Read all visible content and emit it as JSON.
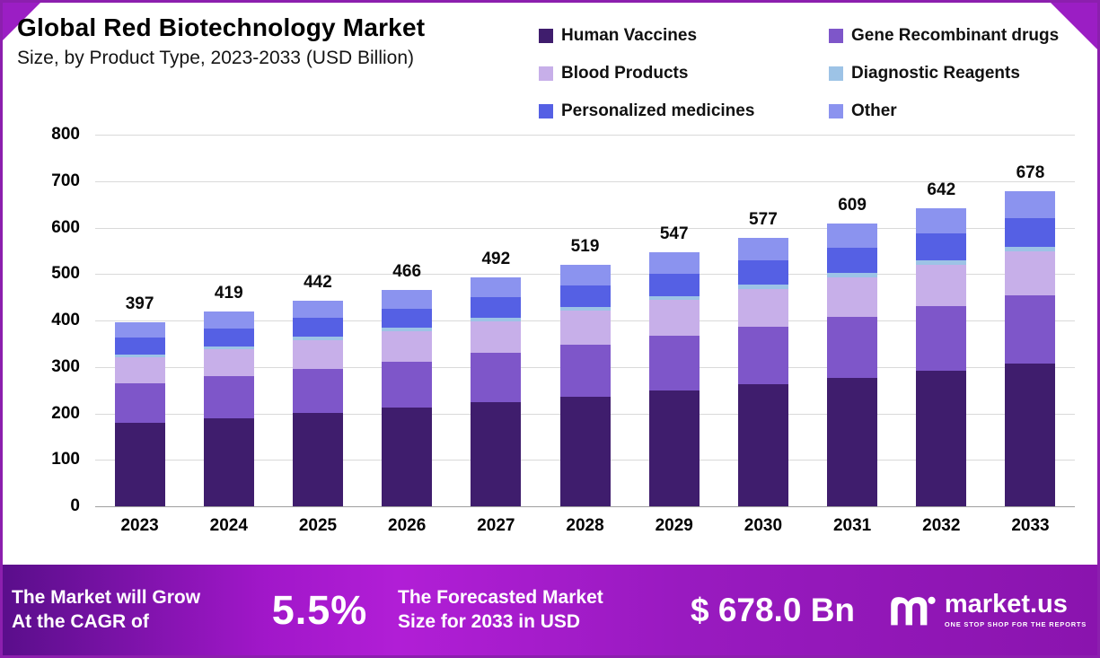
{
  "header": {
    "title": "Global Red Biotechnology Market",
    "subtitle": "Size, by Product Type, 2023-2033 (USD Billion)"
  },
  "chart_data": {
    "type": "bar",
    "stacked": true,
    "title": "Global Red Biotechnology Market Size, by Product Type, 2023-2033 (USD Billion)",
    "xlabel": "",
    "ylabel": "",
    "ylim": [
      0,
      800
    ],
    "ytick_interval": 100,
    "grid": true,
    "legend_position": "top-right",
    "categories": [
      "2023",
      "2024",
      "2025",
      "2026",
      "2027",
      "2028",
      "2029",
      "2030",
      "2031",
      "2032",
      "2033"
    ],
    "totals": [
      397,
      419,
      442,
      466,
      492,
      519,
      547,
      577,
      609,
      642,
      678
    ],
    "series": [
      {
        "name": "Human Vaccines",
        "color": "#3f1d6d",
        "values": [
          180,
          190,
          201,
          212,
          224,
          236,
          249,
          263,
          277,
          292,
          308
        ]
      },
      {
        "name": "Gene Recombinant drugs",
        "color": "#7e56c9",
        "values": [
          85,
          90,
          95,
          100,
          106,
          112,
          118,
          124,
          131,
          138,
          146
        ]
      },
      {
        "name": "Blood Products",
        "color": "#c7afe9",
        "values": [
          56,
          59,
          62,
          65,
          69,
          73,
          77,
          81,
          85,
          90,
          95
        ]
      },
      {
        "name": "Diagnostic Reagents",
        "color": "#9dc3e6",
        "values": [
          6,
          6,
          7,
          7,
          7,
          8,
          8,
          9,
          9,
          10,
          10
        ]
      },
      {
        "name": "Personalized medicines",
        "color": "#5560e4",
        "values": [
          36,
          38,
          40,
          42,
          44,
          47,
          49,
          52,
          55,
          58,
          61
        ]
      },
      {
        "name": "Other",
        "color": "#8b93ef",
        "values": [
          34,
          36,
          37,
          40,
          42,
          43,
          46,
          48,
          52,
          54,
          58
        ]
      }
    ]
  },
  "banner": {
    "growth_line1": "The Market will Grow",
    "growth_line2": "At the CAGR of",
    "cagr": "5.5%",
    "forecast_line1": "The Forecasted Market",
    "forecast_line2": "Size for 2033 in USD",
    "forecast_value": "$ 678.0 Bn",
    "brand": "market.us",
    "brand_tagline": "ONE STOP SHOP FOR THE REPORTS"
  },
  "colors": {
    "frame_border": "#8c1fae",
    "banner_gradient_start": "#5a0e8b",
    "banner_gradient_mid": "#b11ed6",
    "banner_gradient_end": "#8a14ae",
    "gridline": "#d9d9d9"
  },
  "icons": {
    "brand_logo": "marketus-logo-icon"
  }
}
